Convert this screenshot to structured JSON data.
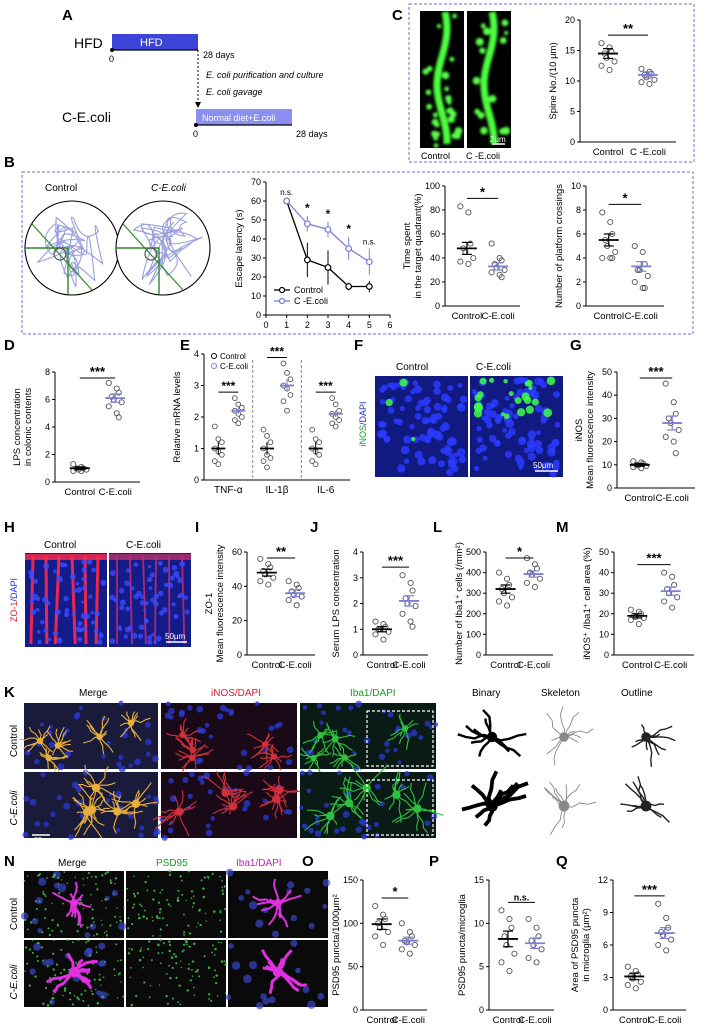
{
  "panels": {
    "A": {
      "label": "A",
      "hfd_label": "HFD",
      "hfd_bar": "HFD",
      "zero1": "0",
      "days1": "28 days",
      "step1": "E. coli purification and culture",
      "step2": "E. coli gavage",
      "cecoli_label": "C-E.coli",
      "normal_bar": "Normal diet+E.coli",
      "zero2": "0",
      "days2": "28 days"
    },
    "B": {
      "label": "B",
      "maze_titles": [
        "Control",
        "C-E.coli"
      ]
    },
    "C": {
      "label": "C",
      "img_labels": [
        "Control",
        "C -E.coli"
      ],
      "scale": "2μm"
    },
    "D": {
      "label": "D"
    },
    "E": {
      "label": "E"
    },
    "F": {
      "label": "F",
      "titles": [
        "Control",
        "C-E.coli"
      ],
      "ylab": [
        "iNOS",
        "/DAPI"
      ],
      "scale": "50μm"
    },
    "G": {
      "label": "G"
    },
    "H": {
      "label": "H",
      "titles": [
        "Control",
        "C-E.coli"
      ],
      "ylab": [
        "ZO-1",
        "/DAPI"
      ],
      "scale": "50μm"
    },
    "I": {
      "label": "I"
    },
    "J": {
      "label": "J"
    },
    "L": {
      "label": "L"
    },
    "M": {
      "label": "M"
    },
    "K": {
      "label": "K",
      "cols": [
        "Merge",
        "iNOS/DAPI",
        "Iba1/DAPI",
        "Binary",
        "Skeleton",
        "Outline"
      ],
      "rows": [
        "Control",
        "C-E.coli"
      ],
      "scale": "20μm"
    },
    "N": {
      "label": "N",
      "cols": [
        "Merge",
        "PSD95",
        "Iba1/DAPI"
      ],
      "rows": [
        "Control",
        "C-E.coli"
      ],
      "scale": "20μm"
    },
    "O": {
      "label": "O"
    },
    "P": {
      "label": "P"
    },
    "Q": {
      "label": "Q"
    }
  },
  "colors": {
    "control": "#000000",
    "treat": "#7b7fd6",
    "box": "#6b6fd8",
    "bar": "#3b44d6",
    "bar2": "#8a8ff0"
  },
  "chart_data": [
    {
      "id": "C",
      "type": "scatter",
      "ylabel": "Spine No./(10 μm)",
      "categories": [
        "Control",
        "C -E.coli"
      ],
      "ylim": [
        0,
        20
      ],
      "yticks": [
        0,
        5,
        10,
        15,
        20
      ],
      "means": [
        14.5,
        11.0
      ],
      "sem": [
        0.8,
        0.5
      ],
      "points": [
        [
          16.2,
          15.5,
          14.8,
          14.5,
          13.8,
          13.2,
          12.5,
          11.8
        ],
        [
          12.0,
          11.5,
          11.2,
          11.0,
          10.6,
          10.2,
          9.8,
          9.5
        ]
      ],
      "significance": "**"
    },
    {
      "id": "B-latency",
      "type": "line",
      "ylabel": "Escape latency (s)",
      "x": [
        1,
        2,
        3,
        4,
        5
      ],
      "xlim": [
        0,
        6
      ],
      "xticks": [
        0,
        1,
        2,
        3,
        4,
        5,
        6
      ],
      "ylim": [
        0,
        70
      ],
      "yticks": [
        0,
        10,
        20,
        30,
        40,
        50,
        60,
        70
      ],
      "series": [
        {
          "name": "Control",
          "values": [
            60,
            29,
            25,
            15,
            15
          ],
          "err": [
            1,
            9,
            9,
            2,
            3
          ]
        },
        {
          "name": "C -E.coli",
          "values": [
            60,
            48,
            45,
            35,
            28
          ],
          "err": [
            1,
            4,
            4,
            6,
            7
          ]
        }
      ],
      "significance": [
        "n.s.",
        "*",
        "*",
        "*",
        "n.s."
      ]
    },
    {
      "id": "B-time",
      "type": "scatter",
      "ylabel": [
        "Time spent",
        "in the target quadrant(%)"
      ],
      "categories": [
        "Control",
        "C-E.coli"
      ],
      "ylim": [
        0,
        100
      ],
      "yticks": [
        0,
        20,
        40,
        60,
        80,
        100
      ],
      "means": [
        48,
        33
      ],
      "sem": [
        5,
        3
      ],
      "points": [
        [
          83,
          78,
          52,
          48,
          45,
          40,
          37,
          35
        ],
        [
          52,
          40,
          38,
          35,
          32,
          30,
          28,
          26,
          24
        ]
      ],
      "significance": "*"
    },
    {
      "id": "B-crossings",
      "type": "scatter",
      "ylabel": "Number of platform crossings",
      "categories": [
        "Control",
        "C-E.coli"
      ],
      "ylim": [
        0,
        10
      ],
      "yticks": [
        0,
        2,
        4,
        6,
        8,
        10
      ],
      "means": [
        5.5,
        3.3
      ],
      "sem": [
        0.5,
        0.4
      ],
      "points": [
        [
          7.8,
          7.0,
          6.0,
          5.5,
          5.0,
          4.5,
          4.0,
          4.0,
          4.0
        ],
        [
          5.0,
          4.5,
          3.5,
          3.0,
          3.0,
          2.5,
          2.0,
          1.5,
          1.5
        ]
      ],
      "significance": "*"
    },
    {
      "id": "D",
      "type": "scatter",
      "ylabel": [
        "LPS concentration",
        "in colonic contents"
      ],
      "categories": [
        "Control",
        "C-E.coli"
      ],
      "ylim": [
        0,
        8
      ],
      "yticks": [
        0,
        2,
        4,
        6,
        8
      ],
      "means": [
        1.0,
        6.1
      ],
      "sem": [
        0.1,
        0.3
      ],
      "points": [
        [
          1.3,
          1.1,
          1.0,
          1.0,
          0.9,
          0.9,
          0.8,
          0.8
        ],
        [
          7.2,
          6.8,
          6.5,
          6.2,
          6.0,
          5.8,
          5.5,
          5.0,
          4.7
        ]
      ],
      "significance": "***"
    },
    {
      "id": "E",
      "type": "scatter",
      "ylabel": "Relative mRNA levels",
      "categories": [
        "TNF-α",
        "IL-1β",
        "IL-6"
      ],
      "ylim": [
        0,
        4
      ],
      "yticks": [
        0,
        1,
        2,
        3,
        4
      ],
      "legend": [
        "Control",
        "C-E.coli"
      ],
      "means": [
        [
          1.0,
          2.2
        ],
        [
          1.0,
          3.0
        ],
        [
          1.0,
          2.1
        ]
      ],
      "sem": [
        [
          0.2,
          0.1
        ],
        [
          0.2,
          0.2
        ],
        [
          0.2,
          0.1
        ]
      ],
      "points": [
        [
          [
            1.7,
            1.3,
            1.2,
            1.0,
            0.9,
            0.8,
            0.6,
            0.5
          ],
          [
            2.6,
            2.4,
            2.3,
            2.2,
            2.1,
            2.0,
            1.9,
            1.8
          ]
        ],
        [
          [
            1.6,
            1.4,
            1.2,
            1.0,
            0.8,
            0.7,
            0.6,
            0.4
          ],
          [
            3.7,
            3.4,
            3.2,
            3.0,
            2.9,
            2.7,
            2.5,
            2.2
          ]
        ],
        [
          [
            1.6,
            1.3,
            1.2,
            1.0,
            0.9,
            0.8,
            0.6,
            0.5
          ],
          [
            2.6,
            2.4,
            2.2,
            2.1,
            2.0,
            1.9,
            1.8,
            1.7
          ]
        ]
      ],
      "significance": [
        "***",
        "***",
        "***"
      ]
    },
    {
      "id": "G",
      "type": "scatter",
      "ylabel": [
        "iNOS",
        "Mean fluorescence intensity"
      ],
      "categories": [
        "Control",
        "C-E.coli"
      ],
      "ylim": [
        0,
        50
      ],
      "yticks": [
        0,
        10,
        20,
        30,
        40,
        50
      ],
      "means": [
        10,
        28
      ],
      "sem": [
        0.6,
        3
      ],
      "points": [
        [
          11.5,
          11,
          10.5,
          10,
          9.8,
          9.5,
          9,
          8.5
        ],
        [
          45,
          37,
          32,
          30,
          28,
          25,
          22,
          20,
          15
        ]
      ],
      "significance": "***"
    },
    {
      "id": "I",
      "type": "scatter",
      "ylabel": [
        "ZO-1",
        "Mean fluorescence intensity"
      ],
      "categories": [
        "Control",
        "C-E.coli"
      ],
      "ylim": [
        0,
        60
      ],
      "yticks": [
        0,
        20,
        40,
        60
      ],
      "means": [
        48,
        36
      ],
      "sem": [
        2,
        2
      ],
      "points": [
        [
          56,
          53,
          51,
          49,
          47,
          45,
          43,
          41
        ],
        [
          43,
          41,
          39,
          37,
          35,
          34,
          32,
          29
        ]
      ],
      "significance": "**"
    },
    {
      "id": "J",
      "type": "scatter",
      "ylabel": "Serum LPS concentration",
      "categories": [
        "Control",
        "C-E.coli"
      ],
      "ylim": [
        0,
        4
      ],
      "yticks": [
        0,
        1,
        2,
        3,
        4
      ],
      "means": [
        1.0,
        2.1
      ],
      "sem": [
        0.1,
        0.2
      ],
      "points": [
        [
          1.3,
          1.2,
          1.1,
          1.0,
          1.0,
          0.9,
          0.8,
          0.6
        ],
        [
          3.1,
          2.8,
          2.5,
          2.2,
          2.0,
          1.9,
          1.6,
          1.3,
          1.1
        ]
      ],
      "significance": "***"
    },
    {
      "id": "L",
      "type": "scatter",
      "ylabel": "Number of Iba1⁺ cells (/mm²)",
      "categories": [
        "Control",
        "C-E.coli"
      ],
      "ylim": [
        0,
        500
      ],
      "yticks": [
        0,
        100,
        200,
        300,
        400,
        500
      ],
      "means": [
        320,
        393
      ],
      "sem": [
        20,
        15
      ],
      "points": [
        [
          400,
          370,
          340,
          320,
          300,
          280,
          260,
          240
        ],
        [
          470,
          440,
          420,
          400,
          390,
          370,
          350,
          330
        ]
      ],
      "significance": "*"
    },
    {
      "id": "M",
      "type": "scatter",
      "ylabel": "iNOS⁺ /Iba1⁺ cell area (%)",
      "categories": [
        "Control",
        "C-E.coli"
      ],
      "ylim": [
        0,
        50
      ],
      "yticks": [
        0,
        10,
        20,
        30,
        40,
        50
      ],
      "means": [
        19,
        31
      ],
      "sem": [
        1,
        2
      ],
      "points": [
        [
          22,
          21,
          20,
          19,
          18.5,
          18,
          17,
          15
        ],
        [
          40,
          38,
          34,
          32,
          30,
          28,
          26,
          23
        ]
      ],
      "significance": "***"
    },
    {
      "id": "O",
      "type": "scatter",
      "ylabel": "PSD95 puncta/1000μm²",
      "categories": [
        "Control",
        "C-E.coli"
      ],
      "ylim": [
        0,
        150
      ],
      "yticks": [
        0,
        50,
        100,
        150
      ],
      "means": [
        99,
        80
      ],
      "sem": [
        6,
        4
      ],
      "points": [
        [
          120,
          110,
          105,
          100,
          95,
          90,
          85,
          75
        ],
        [
          100,
          90,
          85,
          80,
          78,
          75,
          70,
          65
        ]
      ],
      "significance": "*"
    },
    {
      "id": "P",
      "type": "scatter",
      "ylabel": "PSD95 puncta/microglia",
      "categories": [
        "Control",
        "C-E.coli"
      ],
      "ylim": [
        0,
        15
      ],
      "yticks": [
        0,
        5,
        10,
        15
      ],
      "means": [
        8.2,
        7.7
      ],
      "sem": [
        0.9,
        0.6
      ],
      "points": [
        [
          11.5,
          10.5,
          9.5,
          8.5,
          7.5,
          6.5,
          5.5,
          4.5
        ],
        [
          10.5,
          9.5,
          8.5,
          8.0,
          7.5,
          7.0,
          6.0,
          5.5
        ]
      ],
      "significance": "n.s."
    },
    {
      "id": "Q",
      "type": "scatter",
      "ylabel": [
        "Area of PSD95 puncta",
        "in microglia (μm²)"
      ],
      "categories": [
        "Control",
        "C-E.coli"
      ],
      "ylim": [
        0,
        12
      ],
      "yticks": [
        0,
        3,
        6,
        9,
        12
      ],
      "means": [
        3.1,
        7.1
      ],
      "sem": [
        0.3,
        0.5
      ],
      "points": [
        [
          4.0,
          3.6,
          3.3,
          3.1,
          2.9,
          2.6,
          2.3,
          2.0
        ],
        [
          9.8,
          8.5,
          7.6,
          7.2,
          6.9,
          6.5,
          6.0,
          5.5
        ]
      ],
      "significance": "***"
    }
  ]
}
